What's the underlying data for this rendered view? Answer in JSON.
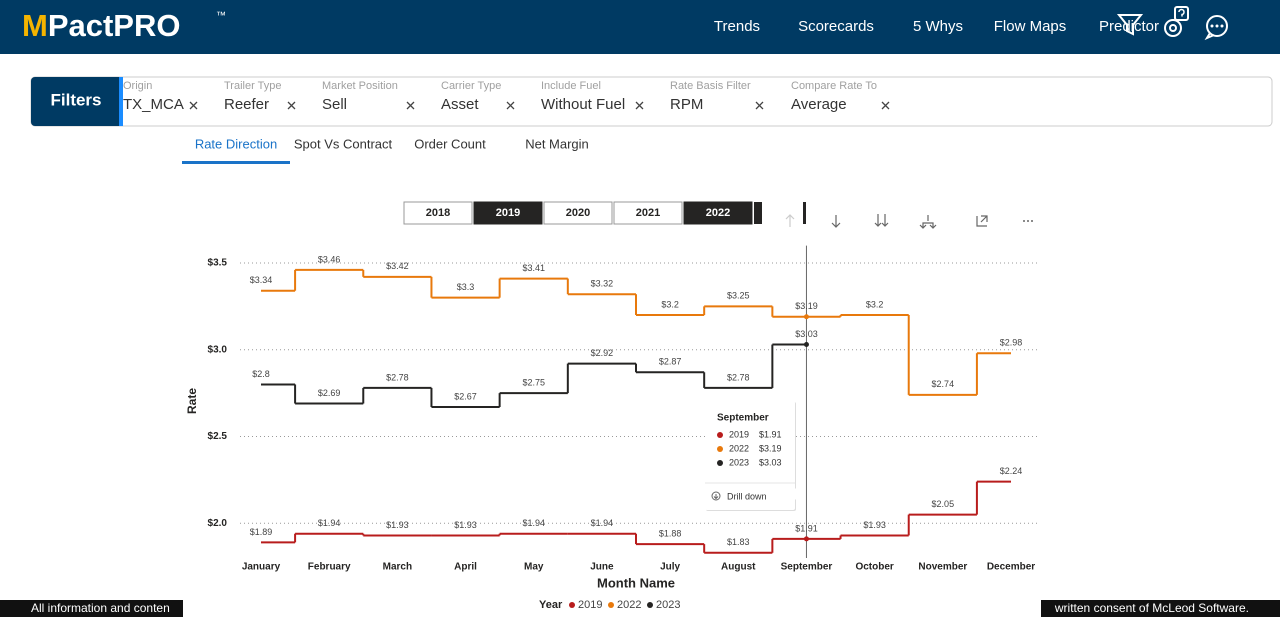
{
  "header": {
    "logo": "MPactPRO",
    "trademark": "™",
    "nav": [
      "Trends",
      "Scorecards",
      "5 Whys",
      "Flow Maps",
      "Predictor"
    ]
  },
  "filters": {
    "label": "Filters",
    "items": [
      {
        "name": "Origin",
        "value": "TX_MCA"
      },
      {
        "name": "Trailer Type",
        "value": "Reefer"
      },
      {
        "name": "Market Position",
        "value": "Sell"
      },
      {
        "name": "Carrier Type",
        "value": "Asset"
      },
      {
        "name": "Include Fuel",
        "value": "Without Fuel"
      },
      {
        "name": "Rate Basis Filter",
        "value": "RPM"
      },
      {
        "name": "Compare Rate To",
        "value": "Average"
      }
    ]
  },
  "tabs": {
    "items": [
      "Rate Direction",
      "Spot Vs Contract",
      "Order Count",
      "Net Margin"
    ],
    "active": 0
  },
  "year_slicer": {
    "years": [
      "2018",
      "2019",
      "2020",
      "2021",
      "2022"
    ],
    "selected": [
      false,
      true,
      false,
      false,
      true
    ]
  },
  "chart_data": {
    "type": "step-line",
    "x_label": "Month Name",
    "y_label": "Rate",
    "legend_title": "Year",
    "categories": [
      "January",
      "February",
      "March",
      "April",
      "May",
      "June",
      "July",
      "August",
      "September",
      "October",
      "November",
      "December"
    ],
    "ylim": [
      1.8,
      3.6
    ],
    "yticks": [
      {
        "value": 2.0,
        "label": "$2.0"
      },
      {
        "value": 2.5,
        "label": "$2.5"
      },
      {
        "value": 3.0,
        "label": "$3.0"
      },
      {
        "value": 3.5,
        "label": "$3.5"
      }
    ],
    "grid": true,
    "series": [
      {
        "name": "2019",
        "color": "#b81c1c",
        "values": [
          1.89,
          1.94,
          1.93,
          1.93,
          1.94,
          1.94,
          1.88,
          1.83,
          1.91,
          1.93,
          2.05,
          2.24
        ],
        "value_labels": [
          "$1.89",
          "$1.94",
          "$1.93",
          "$1.93",
          "$1.94",
          "$1.94",
          "$1.88",
          "$1.83",
          "$1.91",
          "$1.93",
          "$2.05",
          "$2.24"
        ]
      },
      {
        "name": "2022",
        "color": "#e8790c",
        "values": [
          3.34,
          3.46,
          3.42,
          3.3,
          3.41,
          3.32,
          3.2,
          3.25,
          3.19,
          3.2,
          2.74,
          2.98
        ],
        "value_labels": [
          "$3.34",
          "$3.46",
          "$3.42",
          "$3.3",
          "$3.41",
          "$3.32",
          "$3.2",
          "$3.25",
          "$3.19",
          "$3.2",
          "$2.74",
          "$2.98"
        ]
      },
      {
        "name": "2023",
        "color": "#252423",
        "values": [
          2.8,
          2.69,
          2.78,
          2.67,
          2.75,
          2.92,
          2.87,
          2.78,
          3.03,
          null,
          null,
          null
        ],
        "value_labels": [
          "$2.8",
          "$2.69",
          "$2.78",
          "$2.67",
          "$2.75",
          "$2.92",
          "$2.87",
          "$2.78",
          "$3.03",
          null,
          null,
          null
        ]
      }
    ]
  },
  "tooltip": {
    "title": "September",
    "rows": [
      {
        "name": "2019",
        "value": "$1.91"
      },
      {
        "name": "2022",
        "value": "$3.19"
      },
      {
        "name": "2023",
        "value": "$3.03"
      }
    ],
    "action": "Drill down"
  },
  "footer": {
    "left": "All information and conten",
    "right": "written consent of McLeod Software."
  }
}
